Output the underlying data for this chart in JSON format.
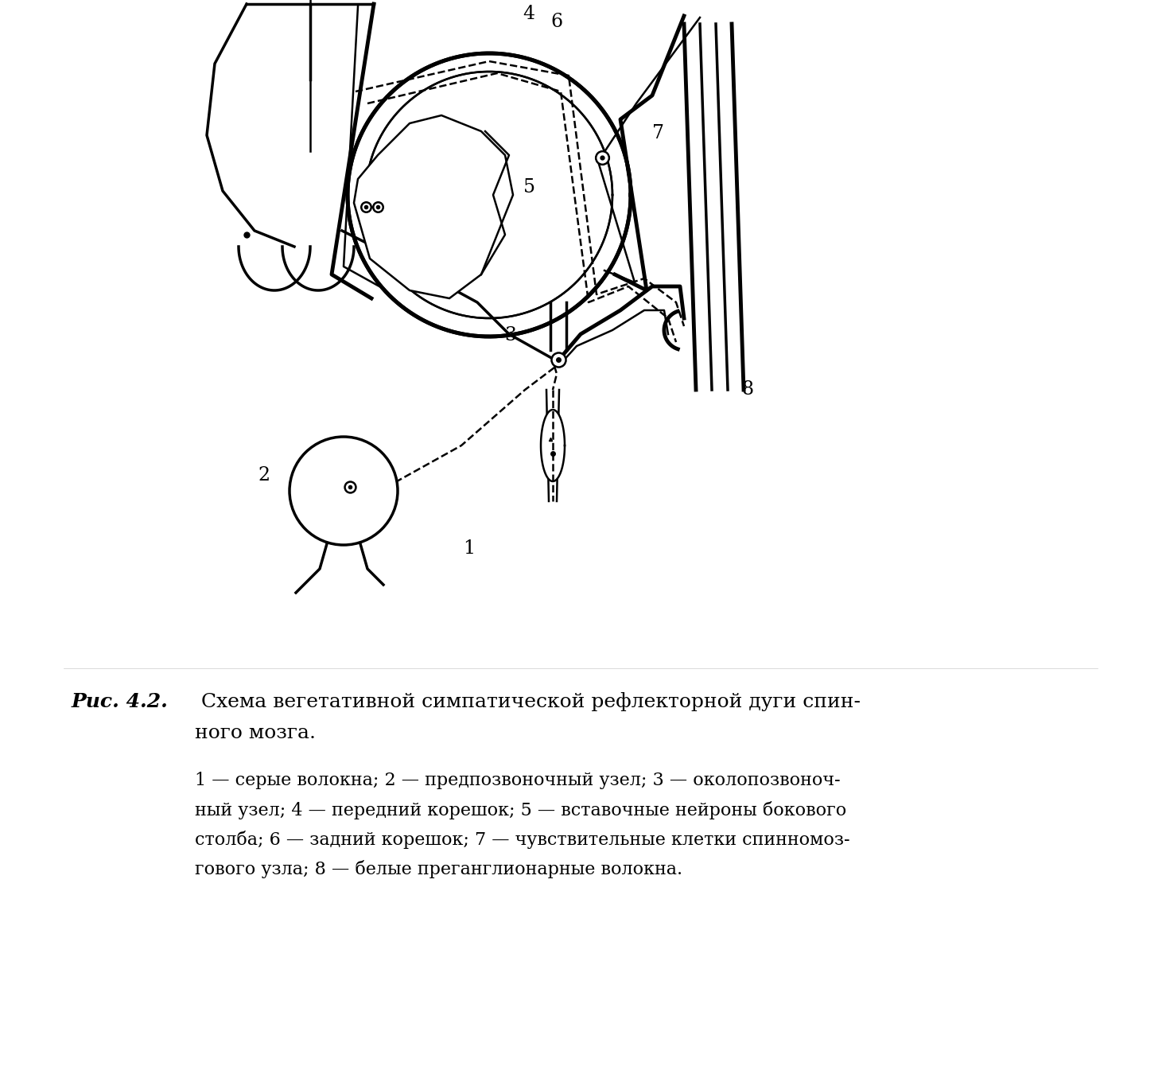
{
  "caption_bold": "Рис. 4.2.",
  "caption_main": " Схема вегетативной симпатической рефлекторной дуги спин-",
  "caption_main2": "ного мозга.",
  "legend_lines": [
    "1 — серые волокна; 2 — предпозвоночный узел; 3 — околопозвоноч-",
    "ный узел; 4 — передний корешок; 5 — вставочные нейроны бокового",
    "столба; 6 — задний корешок; 7 — чувствительные клетки спинномоз-",
    "гового узла; 8 — белые преганглионарные волокна."
  ],
  "bg_color": "#ffffff",
  "line_color": "#000000",
  "label_fontsize": 17,
  "caption_fontsize": 18,
  "legend_fontsize": 16
}
